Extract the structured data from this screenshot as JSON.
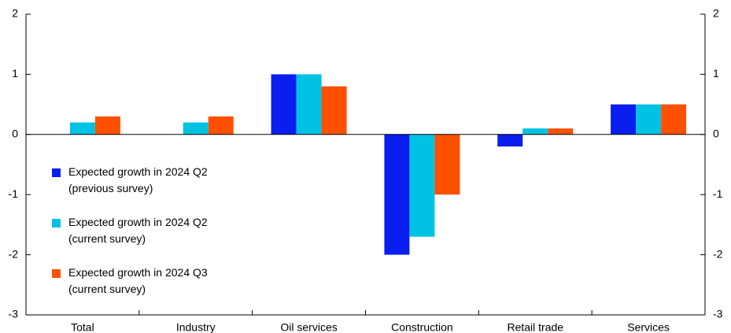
{
  "chart_data": {
    "type": "bar",
    "categories": [
      "Total",
      "Industry",
      "Oil services",
      "Construction",
      "Retail trade",
      "Services"
    ],
    "series": [
      {
        "name": "Expected growth in 2024 Q2 (previous survey)",
        "color": "#0a1ef0",
        "values": [
          0,
          0,
          1.0,
          -2.0,
          -0.2,
          0.5
        ]
      },
      {
        "name": "Expected growth in 2024 Q2 (current survey)",
        "color": "#00c3e3",
        "values": [
          0.2,
          0.2,
          1.0,
          -1.7,
          0.1,
          0.5
        ]
      },
      {
        "name": "Expected growth in 2024 Q3 (current survey)",
        "color": "#ff5000",
        "values": [
          0.3,
          0.3,
          0.8,
          -1.0,
          0.1,
          0.5
        ]
      }
    ],
    "ylim": [
      -3,
      2
    ],
    "yticks": [
      -3,
      -2,
      -1,
      0,
      1,
      2
    ],
    "y2lim": [
      -3,
      2
    ],
    "y2ticks": [
      -3,
      -2,
      -1,
      0,
      1,
      2
    ],
    "legend": "left"
  }
}
